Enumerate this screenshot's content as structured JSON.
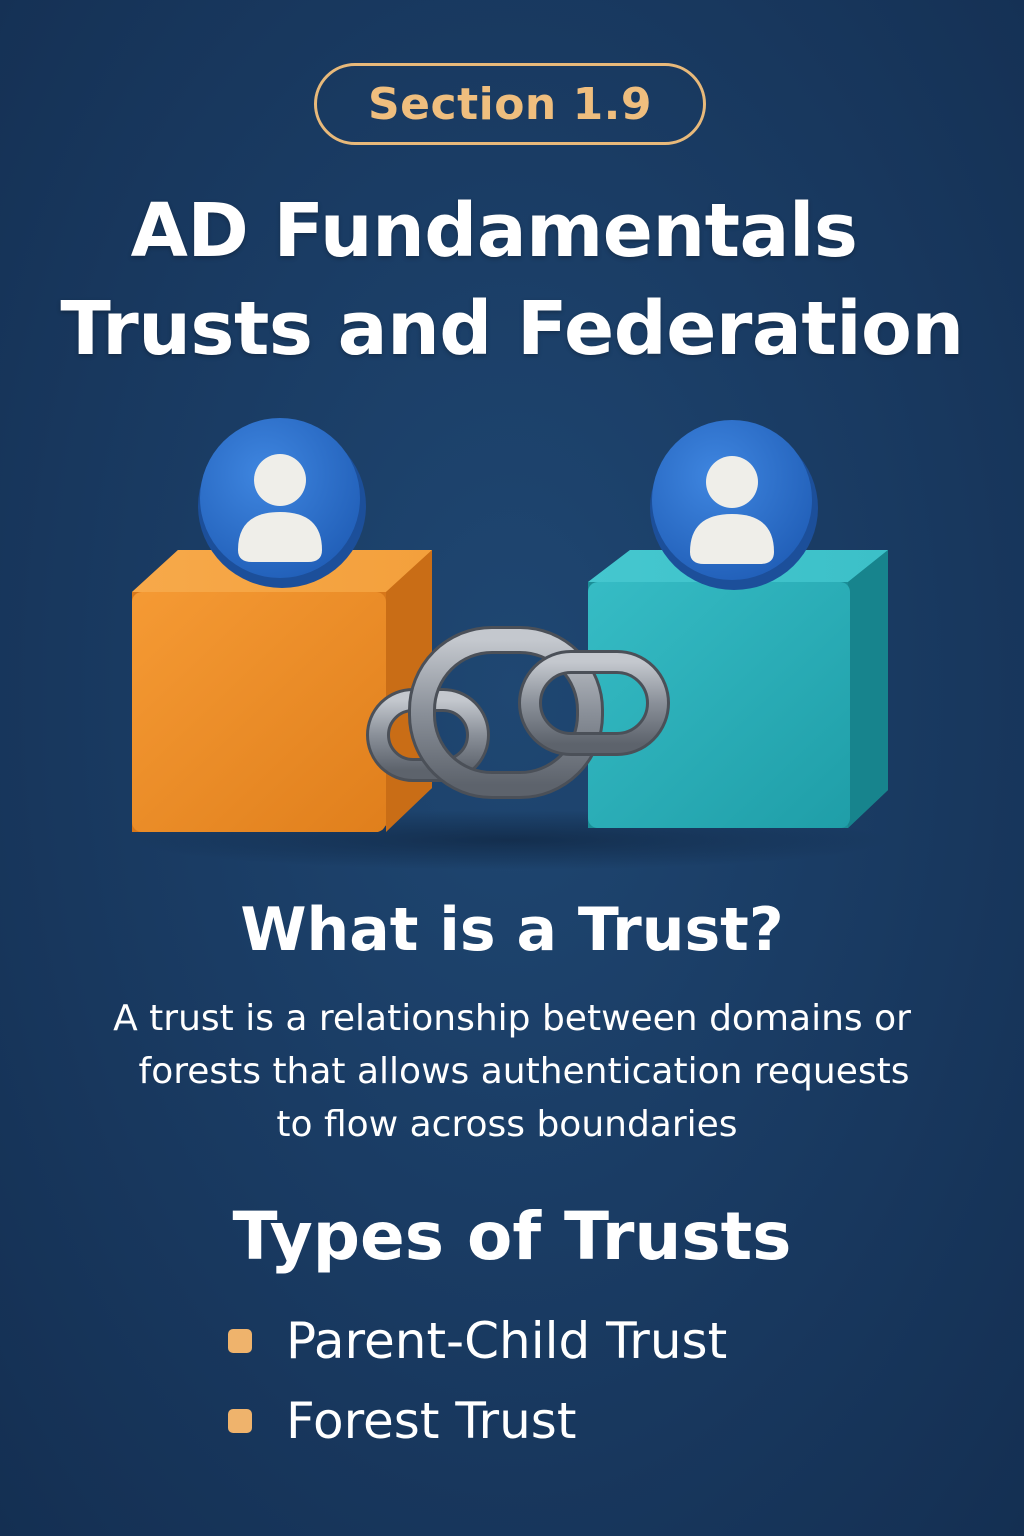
{
  "header": {
    "section_badge": "Section 1.9",
    "title_line1": "AD Fundamentals",
    "title_line2": "Trusts and Federation"
  },
  "hero": {
    "left_block_color": "#f0912a",
    "right_block_color": "#2bb1bb",
    "user_badge_color": "#2f74d0",
    "chain_color": "#8a9099",
    "icons": [
      "user-icon",
      "user-icon",
      "chain-link-icon"
    ]
  },
  "what_is_trust": {
    "heading": "What is a Trust?",
    "description_line1": "A trust is a relationship between domains or",
    "description_line2": "forests that allows authentication requests",
    "description_line3": "to flow across boundaries"
  },
  "types": {
    "heading": "Types of Trusts",
    "items": [
      {
        "label": "Parent-Child Trust"
      },
      {
        "label": "Forest Trust"
      }
    ],
    "bullet_color": "#efb36c"
  },
  "colors": {
    "background": "#1a3c64",
    "accent": "#efbe7e"
  }
}
